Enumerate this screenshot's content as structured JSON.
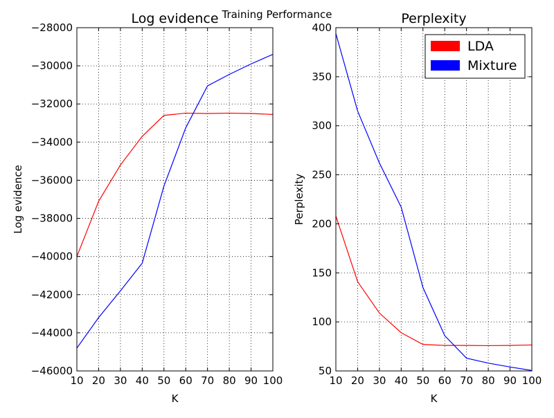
{
  "figure": {
    "suptitle": "Training Performance"
  },
  "chart_data": [
    {
      "type": "line",
      "title": "Log evidence",
      "xlabel": "K",
      "ylabel": "Log evidence",
      "x": [
        10,
        20,
        30,
        40,
        50,
        60,
        70,
        80,
        90,
        100
      ],
      "xlim": [
        10,
        100
      ],
      "ylim": [
        -46000,
        -28000
      ],
      "xticks": [
        10,
        20,
        30,
        40,
        50,
        60,
        70,
        80,
        90,
        100
      ],
      "yticks": [
        -46000,
        -44000,
        -42000,
        -40000,
        -38000,
        -36000,
        -34000,
        -32000,
        -30000,
        -28000
      ],
      "ytick_labels": [
        "−46000",
        "−44000",
        "−42000",
        "−40000",
        "−38000",
        "−36000",
        "−34000",
        "−32000",
        "−30000",
        "−28000"
      ],
      "grid": true,
      "series": [
        {
          "name": "LDA",
          "color": "#ff0000",
          "values": [
            -40000,
            -37100,
            -35200,
            -33700,
            -32600,
            -32480,
            -32500,
            -32480,
            -32500,
            -32550
          ]
        },
        {
          "name": "Mixture",
          "color": "#0000ff",
          "values": [
            -44800,
            -43200,
            -41800,
            -40350,
            -36300,
            -33250,
            -31050,
            -30450,
            -29900,
            -29400
          ]
        }
      ]
    },
    {
      "type": "line",
      "title": "Perplexity",
      "xlabel": "K",
      "ylabel": "Perplexity",
      "x": [
        10,
        20,
        30,
        40,
        50,
        60,
        70,
        80,
        90,
        100
      ],
      "xlim": [
        10,
        100
      ],
      "ylim": [
        50,
        400
      ],
      "xticks": [
        10,
        20,
        30,
        40,
        50,
        60,
        70,
        80,
        90,
        100
      ],
      "yticks": [
        50,
        100,
        150,
        200,
        250,
        300,
        350,
        400
      ],
      "ytick_labels": [
        "50",
        "100",
        "150",
        "200",
        "250",
        "300",
        "350",
        "400"
      ],
      "grid": true,
      "legend": {
        "placement": "top-right",
        "entries": [
          {
            "label": "LDA",
            "color": "#ff0000"
          },
          {
            "label": "Mixture",
            "color": "#0000ff"
          }
        ]
      },
      "series": [
        {
          "name": "LDA",
          "color": "#ff0000",
          "values": [
            208,
            141,
            109,
            89,
            77,
            76,
            76,
            75.8,
            76,
            76.5
          ]
        },
        {
          "name": "Mixture",
          "color": "#0000ff",
          "values": [
            394,
            315,
            262,
            217,
            135,
            86,
            63,
            58,
            54,
            50.5
          ]
        }
      ]
    }
  ]
}
